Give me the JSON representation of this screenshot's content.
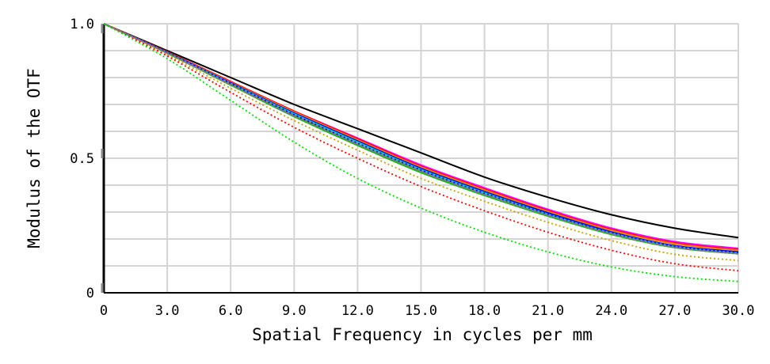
{
  "chart_data": {
    "type": "line",
    "title": "",
    "xlabel": "Spatial Frequency in cycles per mm",
    "ylabel": "Modulus of the OTF",
    "xlim": [
      0,
      30
    ],
    "ylim": [
      0,
      1
    ],
    "grid": true,
    "x_ticks": [
      0,
      3,
      6,
      9,
      12,
      15,
      18,
      21,
      24,
      27,
      30
    ],
    "x_tick_labels": [
      "0",
      "3.0",
      "6.0",
      "9.0",
      "12.0",
      "15.0",
      "18.0",
      "21.0",
      "24.0",
      "27.0",
      "30.0"
    ],
    "y_ticks": [
      0,
      0.5,
      1
    ],
    "y_tick_labels": [
      "0",
      "0.5",
      "1.0"
    ],
    "x": [
      0,
      3,
      6,
      9,
      12,
      15,
      18,
      21,
      24,
      27,
      30
    ],
    "series": [
      {
        "name": "black solid",
        "color": "#000000",
        "style": "solid",
        "values": [
          1.0,
          0.9,
          0.8,
          0.7,
          0.61,
          0.52,
          0.43,
          0.355,
          0.29,
          0.24,
          0.205
        ]
      },
      {
        "name": "magenta solid",
        "color": "#ff00ff",
        "style": "solid",
        "values": [
          1.0,
          0.895,
          0.785,
          0.675,
          0.575,
          0.475,
          0.39,
          0.31,
          0.24,
          0.19,
          0.165
        ]
      },
      {
        "name": "red solid",
        "color": "#ff0000",
        "style": "solid",
        "values": [
          1.0,
          0.895,
          0.785,
          0.675,
          0.572,
          0.47,
          0.385,
          0.305,
          0.235,
          0.185,
          0.16
        ]
      },
      {
        "name": "orange solid",
        "color": "#ff8000",
        "style": "solid",
        "values": [
          1.0,
          0.894,
          0.782,
          0.672,
          0.568,
          0.467,
          0.382,
          0.302,
          0.232,
          0.182,
          0.158
        ]
      },
      {
        "name": "blue solid",
        "color": "#0000ff",
        "style": "solid",
        "values": [
          1.0,
          0.893,
          0.78,
          0.668,
          0.564,
          0.462,
          0.376,
          0.297,
          0.226,
          0.175,
          0.152
        ]
      },
      {
        "name": "cyan solid",
        "color": "#00c8c8",
        "style": "solid",
        "values": [
          1.0,
          0.892,
          0.778,
          0.665,
          0.56,
          0.458,
          0.372,
          0.292,
          0.222,
          0.172,
          0.148
        ]
      },
      {
        "name": "green solid",
        "color": "#00c000",
        "style": "solid",
        "values": [
          1.0,
          0.89,
          0.772,
          0.655,
          0.548,
          0.447,
          0.362,
          0.285,
          0.217,
          0.168,
          0.145
        ]
      },
      {
        "name": "gray solid",
        "color": "#808080",
        "style": "solid",
        "values": [
          1.0,
          0.891,
          0.775,
          0.66,
          0.553,
          0.452,
          0.366,
          0.288,
          0.22,
          0.17,
          0.146
        ]
      },
      {
        "name": "blue dotted",
        "color": "#0000ff",
        "style": "dotted",
        "values": [
          1.0,
          0.893,
          0.778,
          0.662,
          0.556,
          0.456,
          0.37,
          0.292,
          0.222,
          0.172,
          0.15
        ]
      },
      {
        "name": "gray dotted",
        "color": "#808080",
        "style": "dotted",
        "values": [
          1.0,
          0.89,
          0.772,
          0.655,
          0.55,
          0.45,
          0.365,
          0.288,
          0.219,
          0.168,
          0.144
        ]
      },
      {
        "name": "olive dotted",
        "color": "#c8a000",
        "style": "dotted",
        "values": [
          1.0,
          0.885,
          0.76,
          0.64,
          0.53,
          0.425,
          0.34,
          0.262,
          0.194,
          0.143,
          0.12
        ]
      },
      {
        "name": "red dotted",
        "color": "#ff0000",
        "style": "dotted",
        "values": [
          1.0,
          0.88,
          0.745,
          0.615,
          0.5,
          0.395,
          0.305,
          0.225,
          0.158,
          0.108,
          0.082
        ]
      },
      {
        "name": "green dotted",
        "color": "#00e000",
        "style": "dotted",
        "values": [
          1.0,
          0.87,
          0.715,
          0.56,
          0.425,
          0.315,
          0.225,
          0.152,
          0.096,
          0.06,
          0.042
        ]
      }
    ]
  }
}
